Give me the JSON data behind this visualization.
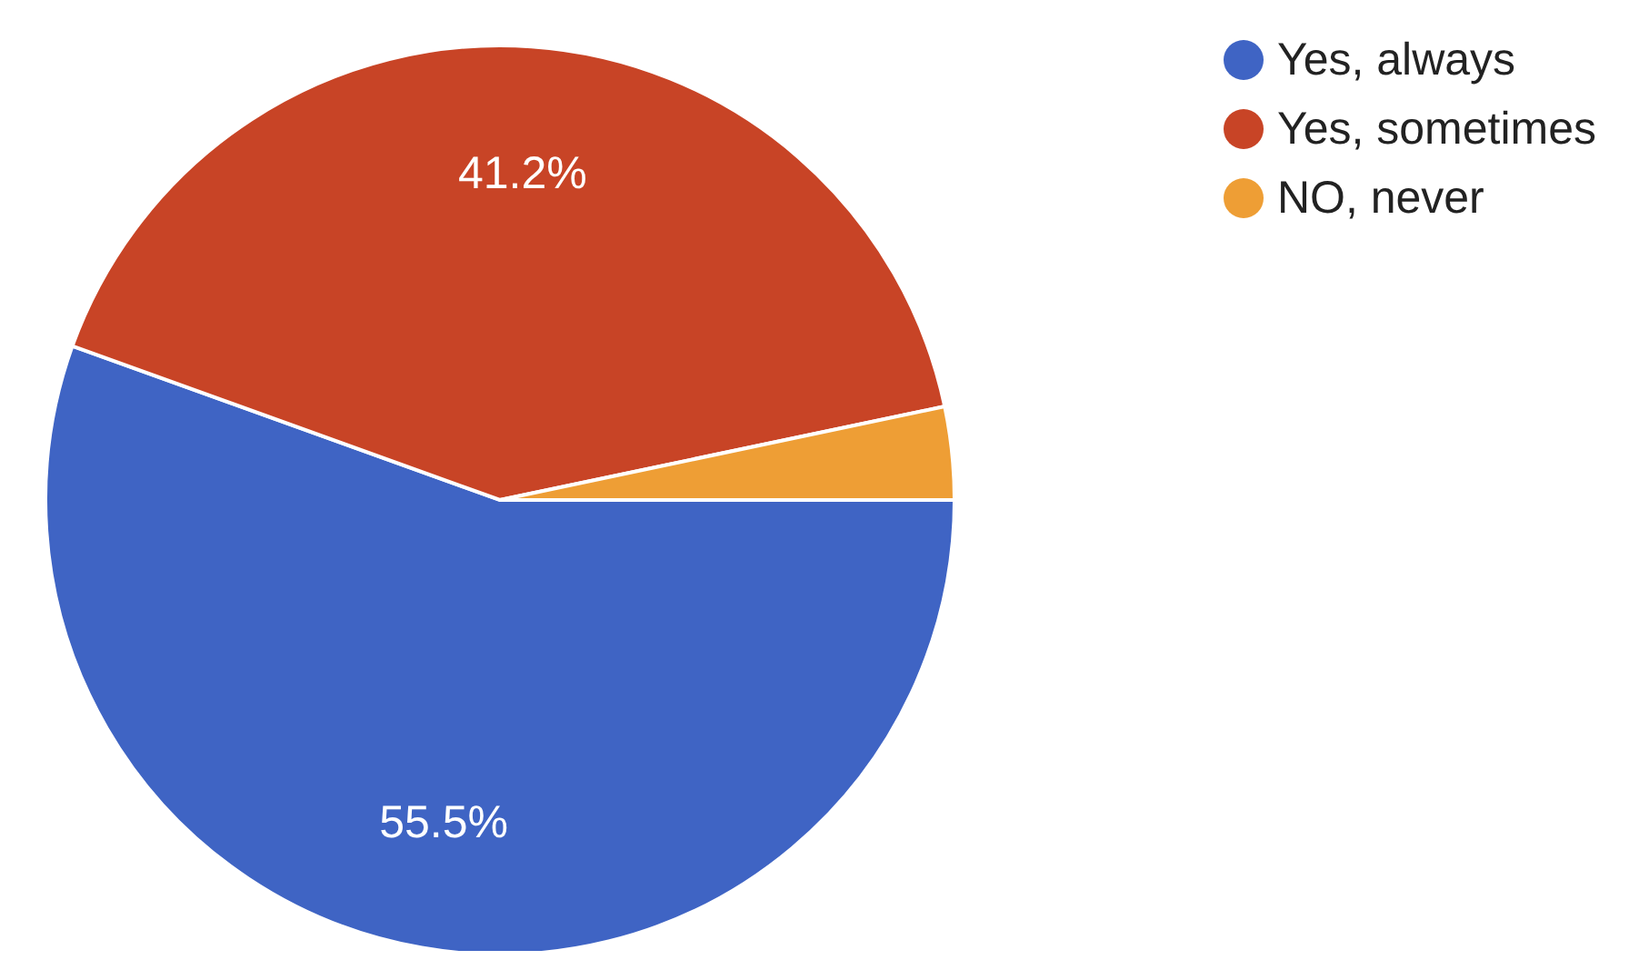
{
  "chart_data": {
    "type": "pie",
    "categories": [
      "Yes, always",
      "Yes, sometimes",
      "NO, never"
    ],
    "values": [
      55.5,
      41.2,
      3.3
    ],
    "colors": [
      "#3f64c4",
      "#c84426",
      "#ee9e35"
    ],
    "value_labels": [
      "55.5%",
      "41.2%",
      null
    ],
    "legend": "top right"
  }
}
